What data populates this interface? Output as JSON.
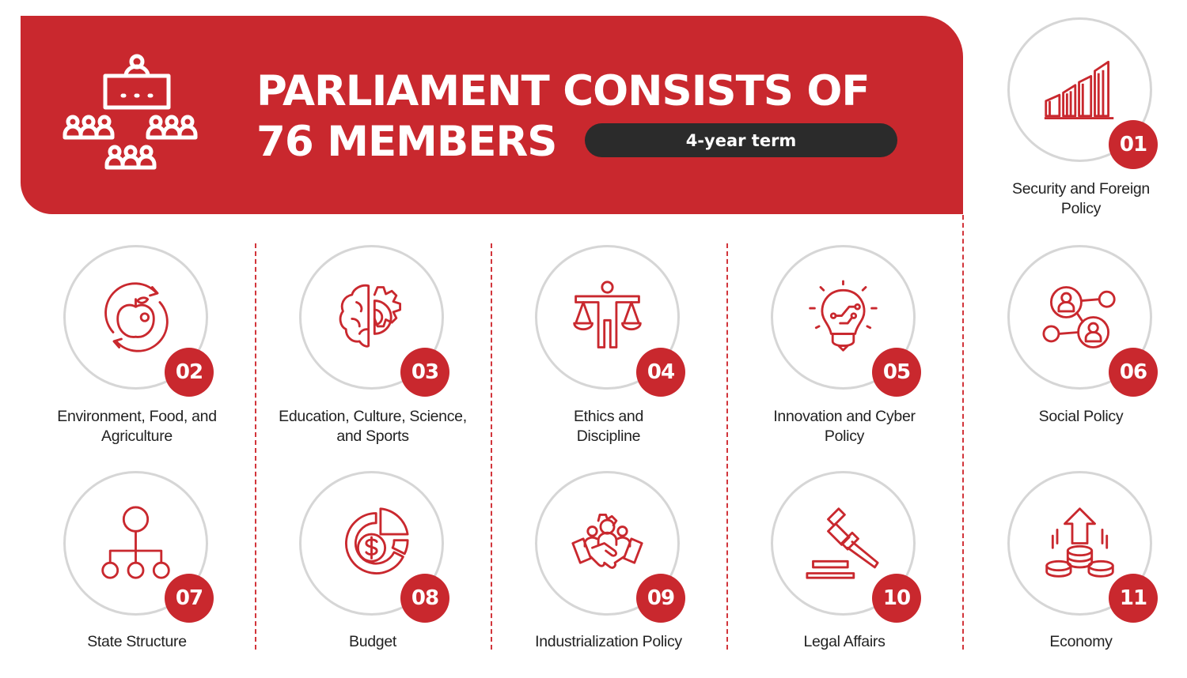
{
  "header": {
    "title_line1": "PARLIAMENT CONSISTS OF",
    "title_line2": "76 MEMBERS",
    "term_label": "4-year term",
    "icon": "assembly-icon"
  },
  "colors": {
    "accent": "#c9282e",
    "pill": "#2b2b2b",
    "circle_border": "#d6d6d6",
    "text": "#222222"
  },
  "committees": [
    {
      "number": "01",
      "label_line1": "Security and Foreign",
      "label_line2": "Policy",
      "icon": "growth-chart-icon"
    },
    {
      "number": "02",
      "label_line1": "Environment, Food, and",
      "label_line2": "Agriculture",
      "icon": "apple-cycle-icon"
    },
    {
      "number": "03",
      "label_line1": "Education, Culture, Science,",
      "label_line2": "and Sports",
      "icon": "brain-gear-icon"
    },
    {
      "number": "04",
      "label_line1": "Ethics and",
      "label_line2": "Discipline",
      "icon": "scales-person-icon"
    },
    {
      "number": "05",
      "label_line1": "Innovation and Cyber",
      "label_line2": "Policy",
      "icon": "circuit-bulb-icon"
    },
    {
      "number": "06",
      "label_line1": "Social Policy",
      "label_line2": "",
      "icon": "social-network-icon"
    },
    {
      "number": "07",
      "label_line1": "State Structure",
      "label_line2": "",
      "icon": "hierarchy-icon"
    },
    {
      "number": "08",
      "label_line1": "Budget",
      "label_line2": "",
      "icon": "dollar-pie-icon"
    },
    {
      "number": "09",
      "label_line1": "Industrialization Policy",
      "label_line2": "",
      "icon": "handshake-team-icon"
    },
    {
      "number": "10",
      "label_line1": "Legal Affairs",
      "label_line2": "",
      "icon": "gavel-icon"
    },
    {
      "number": "11",
      "label_line1": "Economy",
      "label_line2": "",
      "icon": "coins-arrow-icon"
    }
  ]
}
